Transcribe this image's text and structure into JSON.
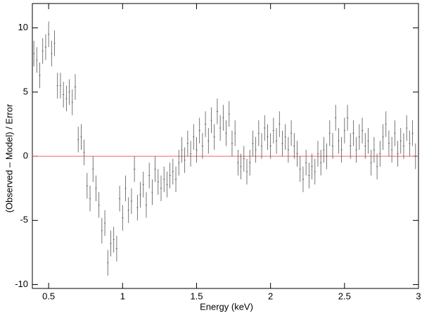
{
  "chart_data": {
    "type": "errorbar",
    "xlabel": "Energy (keV)",
    "ylabel": "(Observed – Model) / Error",
    "xlim": [
      0.39,
      3.0
    ],
    "ylim": [
      -10.3,
      11.9
    ],
    "xticks": [
      0.5,
      1,
      1.5,
      2,
      2.5,
      3
    ],
    "yticks": [
      -10,
      -5,
      0,
      5,
      10
    ],
    "color": "#555555",
    "reference_line": {
      "value": 0,
      "color": "#e86a5a"
    },
    "xerr": 0.01,
    "yerr": 1.0,
    "x": [
      0.4,
      0.42,
      0.44,
      0.46,
      0.48,
      0.5,
      0.52,
      0.54,
      0.56,
      0.58,
      0.6,
      0.62,
      0.64,
      0.66,
      0.68,
      0.7,
      0.72,
      0.74,
      0.76,
      0.78,
      0.8,
      0.82,
      0.84,
      0.86,
      0.88,
      0.9,
      0.92,
      0.94,
      0.96,
      0.98,
      1.0,
      1.02,
      1.04,
      1.06,
      1.08,
      1.1,
      1.12,
      1.14,
      1.16,
      1.18,
      1.2,
      1.22,
      1.24,
      1.26,
      1.28,
      1.3,
      1.32,
      1.34,
      1.36,
      1.38,
      1.4,
      1.42,
      1.44,
      1.46,
      1.48,
      1.5,
      1.52,
      1.54,
      1.56,
      1.58,
      1.6,
      1.62,
      1.64,
      1.66,
      1.68,
      1.7,
      1.72,
      1.74,
      1.76,
      1.78,
      1.8,
      1.82,
      1.84,
      1.86,
      1.88,
      1.9,
      1.92,
      1.94,
      1.96,
      1.98,
      2.0,
      2.02,
      2.04,
      2.06,
      2.08,
      2.1,
      2.12,
      2.14,
      2.16,
      2.18,
      2.2,
      2.22,
      2.24,
      2.26,
      2.28,
      2.3,
      2.32,
      2.34,
      2.36,
      2.38,
      2.4,
      2.42,
      2.44,
      2.46,
      2.48,
      2.5,
      2.52,
      2.54,
      2.56,
      2.58,
      2.6,
      2.62,
      2.64,
      2.66,
      2.68,
      2.7,
      2.72,
      2.74,
      2.76,
      2.78,
      2.8,
      2.82,
      2.84,
      2.86,
      2.88,
      2.9,
      2.92,
      2.94,
      2.96,
      2.98
    ],
    "values": [
      8.0,
      7.5,
      6.3,
      8.2,
      8.5,
      9.5,
      8.0,
      8.8,
      5.5,
      5.5,
      4.8,
      4.5,
      5.0,
      4.2,
      5.4,
      1.3,
      1.5,
      0.3,
      -2.3,
      -3.3,
      -1.0,
      -2.5,
      -3.8,
      -5.8,
      -5.2,
      -8.3,
      -6.8,
      -6.5,
      -7.2,
      -3.3,
      -4.8,
      -2.5,
      -4.2,
      -3.5,
      -1.0,
      -4.0,
      -3.0,
      -2.2,
      -3.8,
      -1.5,
      -2.8,
      -1.0,
      -2.0,
      -2.5,
      -1.8,
      -2.2,
      -1.5,
      -1.2,
      -1.8,
      -0.5,
      0.5,
      -0.3,
      1.0,
      0.2,
      1.5,
      0.5,
      2.0,
      0.8,
      2.5,
      1.2,
      2.8,
      1.5,
      3.5,
      2.2,
      3.0,
      1.8,
      3.3,
      1.0,
      1.8,
      -0.5,
      -0.8,
      -0.2,
      -1.2,
      -0.5,
      1.0,
      0.5,
      1.8,
      0.8,
      2.2,
      1.5,
      0.8,
      2.0,
      1.2,
      2.5,
      1.0,
      1.5,
      0.5,
      1.8,
      0.8,
      0.2,
      -1.0,
      -1.8,
      -0.5,
      -1.5,
      -0.8,
      -1.2,
      0.2,
      -0.5,
      0.5,
      0.0,
      1.8,
      0.8,
      3.0,
      1.2,
      0.5,
      2.0,
      3.0,
      0.8,
      1.8,
      0.5,
      1.5,
      2.0,
      0.8,
      1.2,
      -0.5,
      0.5,
      -0.8,
      0.2,
      1.5,
      2.5,
      1.0,
      0.5,
      1.8,
      0.2,
      1.2,
      0.8,
      2.2,
      1.0,
      1.8,
      0.0
    ]
  }
}
